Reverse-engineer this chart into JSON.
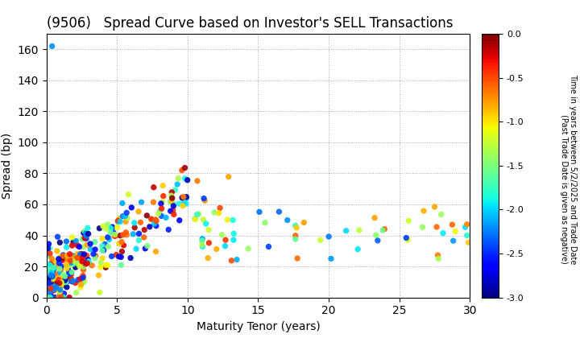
{
  "title": "(9506)   Spread Curve based on Investor's SELL Transactions",
  "xlabel": "Maturity Tenor (years)",
  "ylabel": "Spread (bp)",
  "colorbar_label": "Time in years between 5/2/2025 and Trade Date\n(Past Trade Date is given as negative)",
  "xlim": [
    0,
    30
  ],
  "ylim": [
    0,
    170
  ],
  "xticks": [
    0,
    5,
    10,
    15,
    20,
    25,
    30
  ],
  "yticks": [
    0,
    20,
    40,
    60,
    80,
    100,
    120,
    140,
    160
  ],
  "cmap": "jet",
  "vmin": -3.0,
  "vmax": 0.0,
  "colorbar_ticks": [
    0.0,
    -0.5,
    -1.0,
    -1.5,
    -2.0,
    -2.5,
    -3.0
  ],
  "background_color": "#ffffff",
  "grid_color": "#aaaaaa",
  "title_fontsize": 12,
  "axis_label_fontsize": 10,
  "seed": 99
}
